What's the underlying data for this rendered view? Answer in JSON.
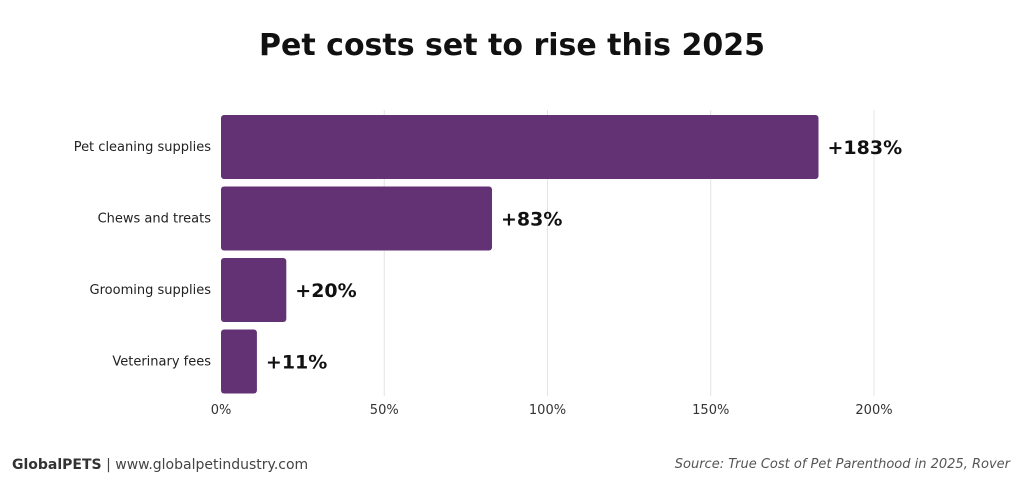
{
  "header": {
    "title": "Pet costs set to rise this 2025"
  },
  "footer": {
    "brand": "GlobalPETS",
    "separator": "|",
    "website": "www.globalpetindustry.com",
    "source": "Source: True Cost of Pet Parenthood in 2025, Rover"
  },
  "colors": {
    "bar": "#633274",
    "grid": "#e4e4e4",
    "text": "#222222"
  },
  "chart_data": {
    "type": "bar",
    "orientation": "horizontal",
    "title": "Pet costs set to rise this 2025",
    "categories": [
      "Pet cleaning supplies",
      "Chews and treats",
      "Grooming supplies",
      "Veterinary fees"
    ],
    "values": [
      183,
      83,
      20,
      11
    ],
    "data_labels": [
      "+183%",
      "+83%",
      "+20%",
      "+11%"
    ],
    "xlim": [
      0,
      200
    ],
    "xticks": [
      0,
      50,
      100,
      150,
      200
    ],
    "xtick_labels": [
      "0%",
      "50%",
      "100%",
      "150%",
      "200%"
    ],
    "grid": true,
    "legend": "none"
  }
}
